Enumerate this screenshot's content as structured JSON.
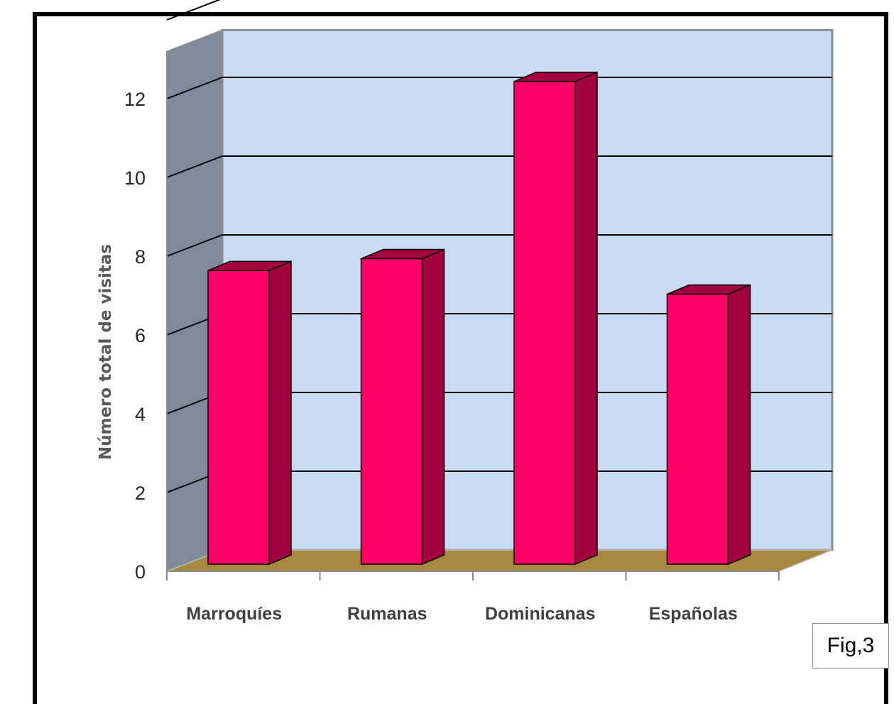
{
  "figure_label": "Fig,3",
  "colors": {
    "bar_front": "#ff0066",
    "bar_side": "#a3003f",
    "wall_back": "#c9dbf2",
    "wall_side": "#7f8a9a",
    "floor": "#a8873f",
    "frame": "#000000"
  },
  "chart_data": {
    "type": "bar",
    "categories": [
      "Marroquíes",
      "Rumanas",
      "Dominicanas",
      "Españolas"
    ],
    "values": [
      7.6,
      7.9,
      12.4,
      7.0
    ],
    "title": "",
    "xlabel": "",
    "ylabel": "Número total de visitas",
    "ylim": [
      0,
      12
    ],
    "yticks": [
      "0",
      "2",
      "4",
      "6",
      "8",
      "10",
      "12"
    ],
    "grid": true,
    "legend": "none",
    "style": "3d-column"
  }
}
